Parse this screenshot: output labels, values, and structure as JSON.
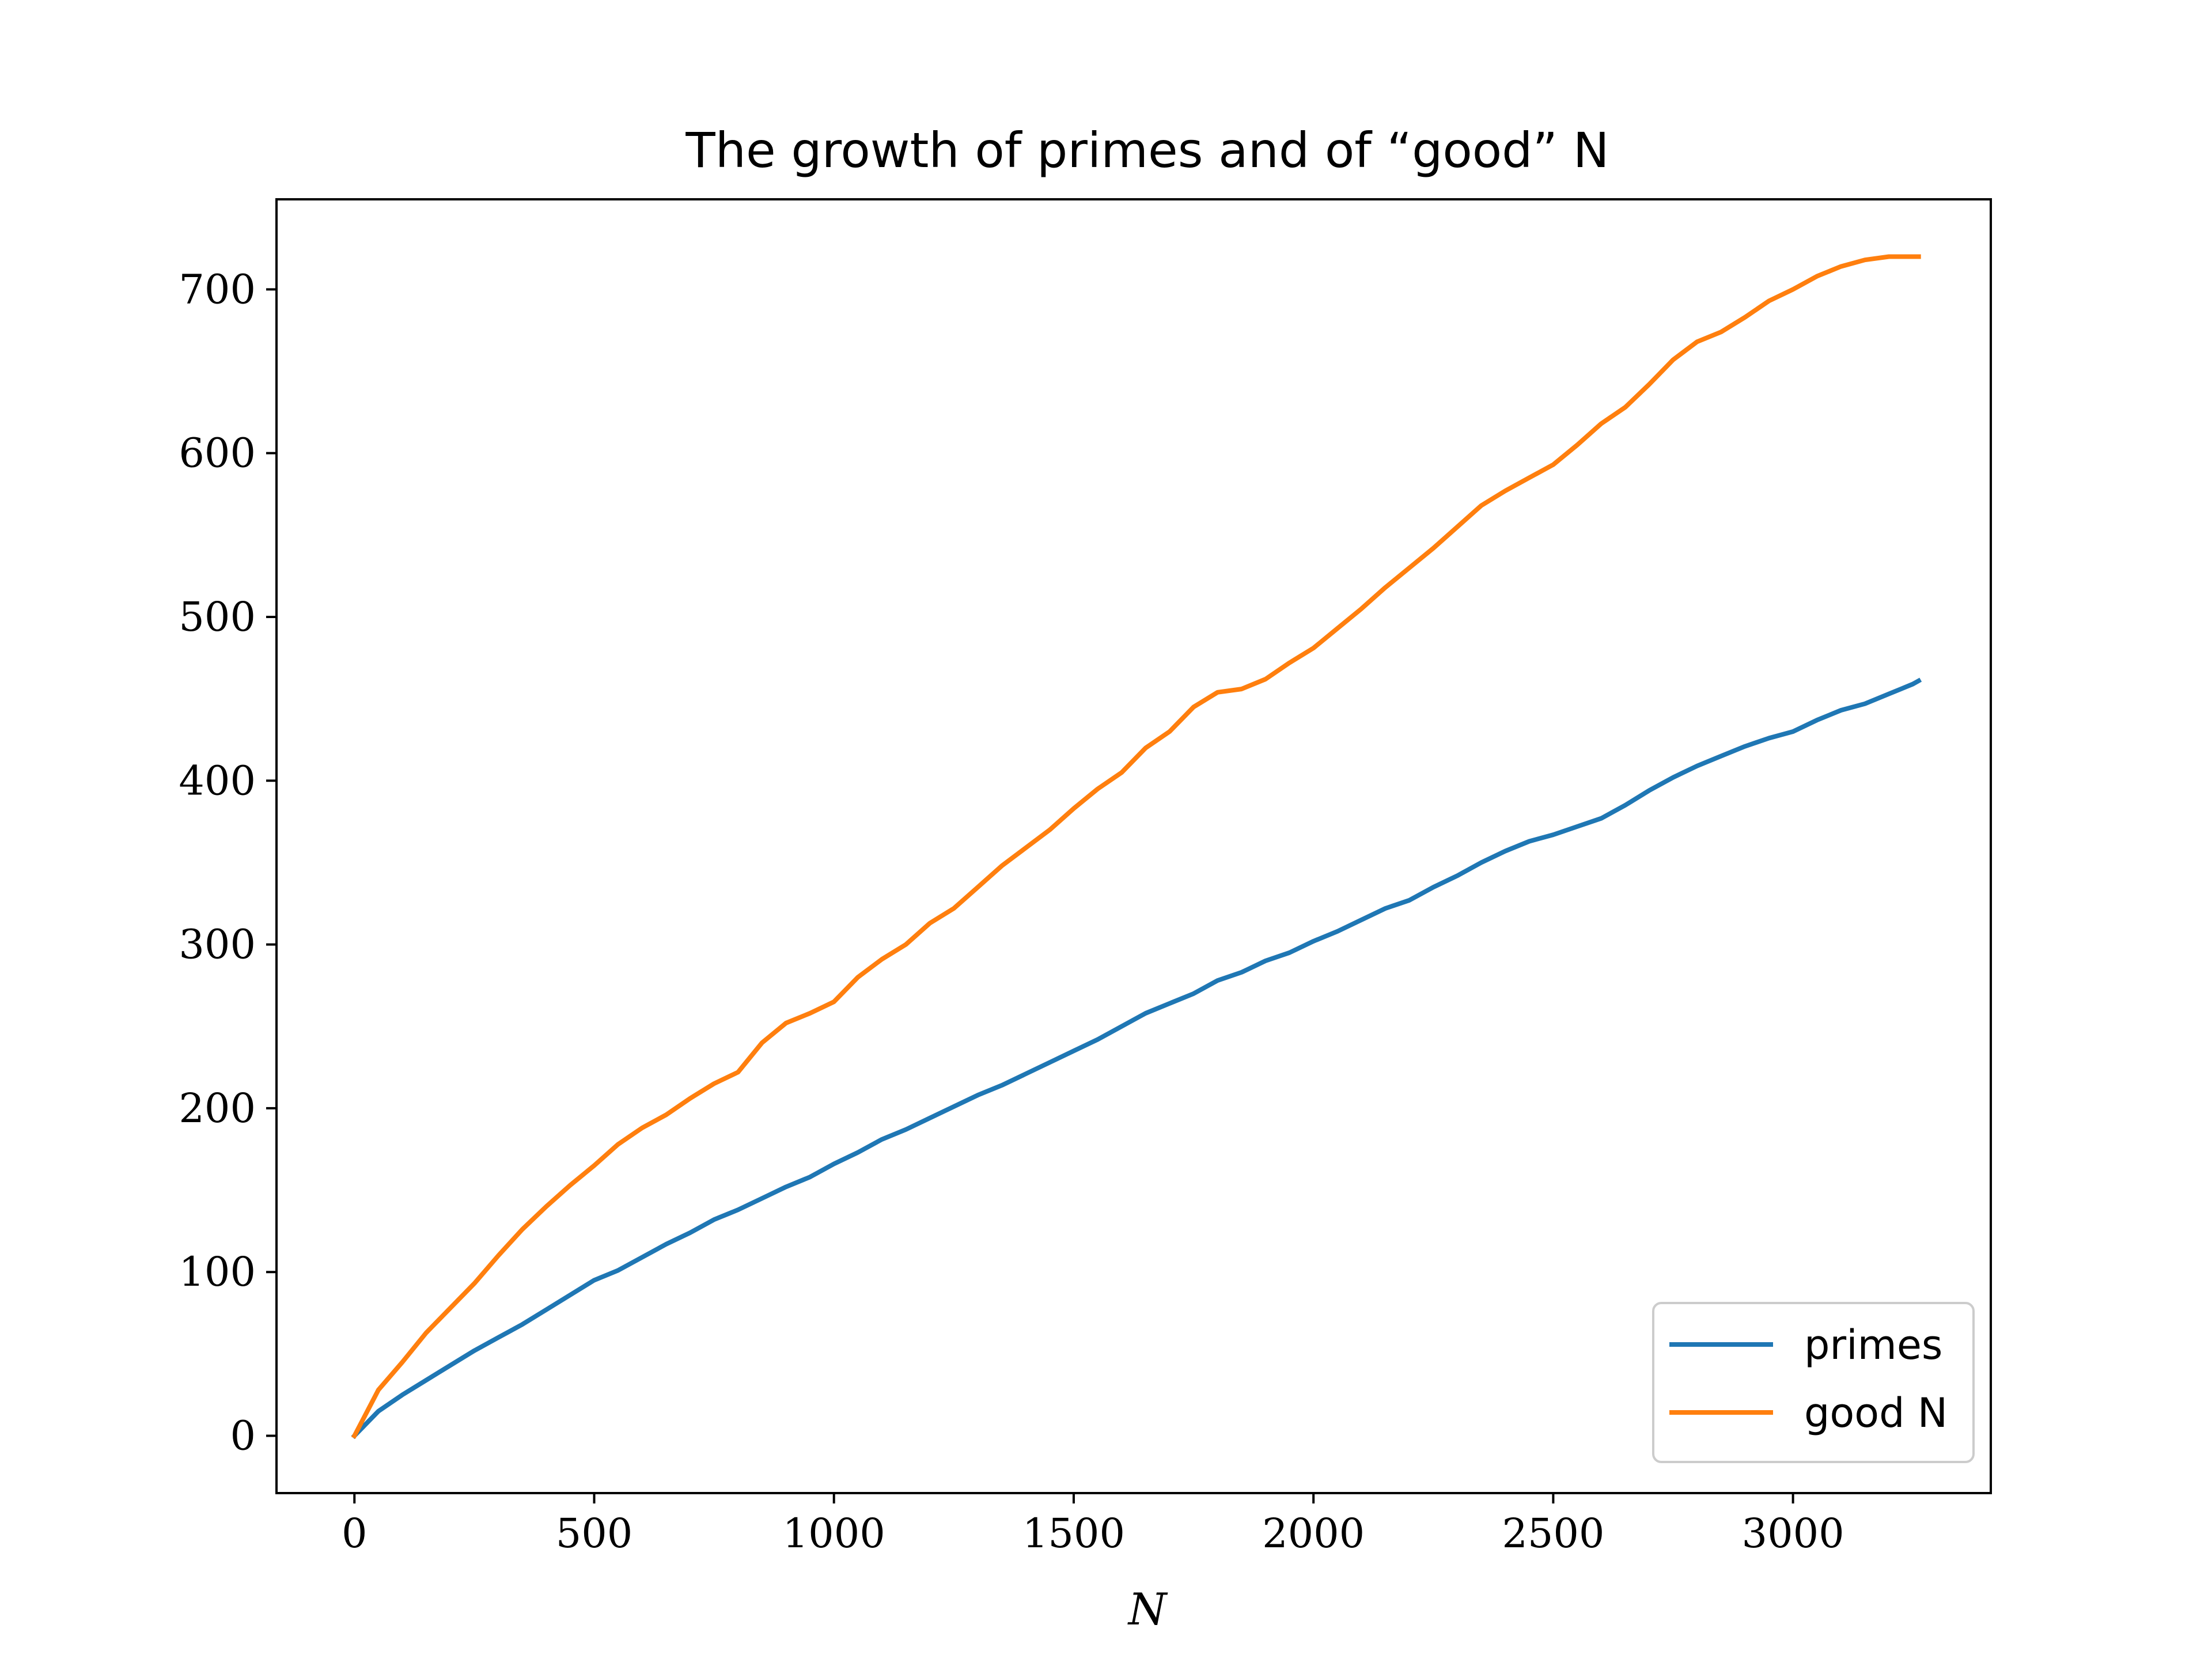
{
  "chart_data": {
    "type": "line",
    "title": "The growth of primes and of “good” N",
    "xlabel": "N",
    "ylabel": "",
    "xlim": [
      -162.5,
      3412.5
    ],
    "ylim": [
      -35,
      755
    ],
    "xticks": [
      0,
      500,
      1000,
      1500,
      2000,
      2500,
      3000
    ],
    "yticks": [
      0,
      100,
      200,
      300,
      400,
      500,
      600,
      700
    ],
    "grid": false,
    "legend": "lower right",
    "series": [
      {
        "name": "primes",
        "color": "#1f77b4",
        "x": [
          0,
          50,
          100,
          150,
          200,
          250,
          300,
          350,
          400,
          450,
          500,
          550,
          600,
          650,
          700,
          750,
          800,
          850,
          900,
          950,
          1000,
          1050,
          1100,
          1150,
          1200,
          1250,
          1300,
          1350,
          1400,
          1450,
          1500,
          1550,
          1600,
          1650,
          1700,
          1750,
          1800,
          1850,
          1900,
          1950,
          2000,
          2050,
          2100,
          2150,
          2200,
          2250,
          2300,
          2350,
          2400,
          2450,
          2500,
          2550,
          2600,
          2650,
          2700,
          2750,
          2800,
          2850,
          2900,
          2950,
          3000,
          3050,
          3100,
          3150,
          3200,
          3250,
          3262
        ],
        "y": [
          0,
          15,
          25,
          34,
          43,
          52,
          60,
          68,
          77,
          86,
          95,
          101,
          109,
          117,
          124,
          132,
          138,
          145,
          152,
          158,
          166,
          173,
          181,
          187,
          194,
          201,
          208,
          214,
          221,
          228,
          235,
          242,
          250,
          258,
          264,
          270,
          278,
          283,
          290,
          295,
          302,
          308,
          315,
          322,
          327,
          335,
          342,
          350,
          357,
          363,
          367,
          372,
          377,
          385,
          394,
          402,
          409,
          415,
          421,
          426,
          430,
          437,
          443,
          447,
          453,
          459,
          461
        ]
      },
      {
        "name": "good N",
        "color": "#ff7f0e",
        "x": [
          0,
          50,
          100,
          150,
          200,
          250,
          300,
          350,
          400,
          450,
          500,
          550,
          600,
          650,
          700,
          750,
          800,
          850,
          900,
          950,
          1000,
          1050,
          1100,
          1150,
          1200,
          1250,
          1300,
          1350,
          1400,
          1450,
          1500,
          1550,
          1600,
          1650,
          1700,
          1750,
          1800,
          1850,
          1900,
          1950,
          2000,
          2050,
          2100,
          2150,
          2200,
          2250,
          2300,
          2350,
          2400,
          2450,
          2500,
          2550,
          2600,
          2650,
          2700,
          2750,
          2800,
          2850,
          2900,
          2950,
          3000,
          3050,
          3100,
          3150,
          3200,
          3250,
          3262
        ],
        "y": [
          0,
          28,
          45,
          63,
          78,
          93,
          110,
          126,
          140,
          153,
          165,
          178,
          188,
          196,
          206,
          215,
          222,
          240,
          252,
          258,
          265,
          280,
          291,
          300,
          313,
          322,
          335,
          348,
          359,
          370,
          383,
          395,
          405,
          420,
          430,
          445,
          454,
          456,
          462,
          472,
          481,
          493,
          505,
          518,
          530,
          542,
          555,
          568,
          577,
          585,
          593,
          605,
          618,
          628,
          642,
          657,
          668,
          674,
          683,
          693,
          700,
          708,
          714,
          718,
          720,
          720,
          720
        ]
      }
    ]
  }
}
